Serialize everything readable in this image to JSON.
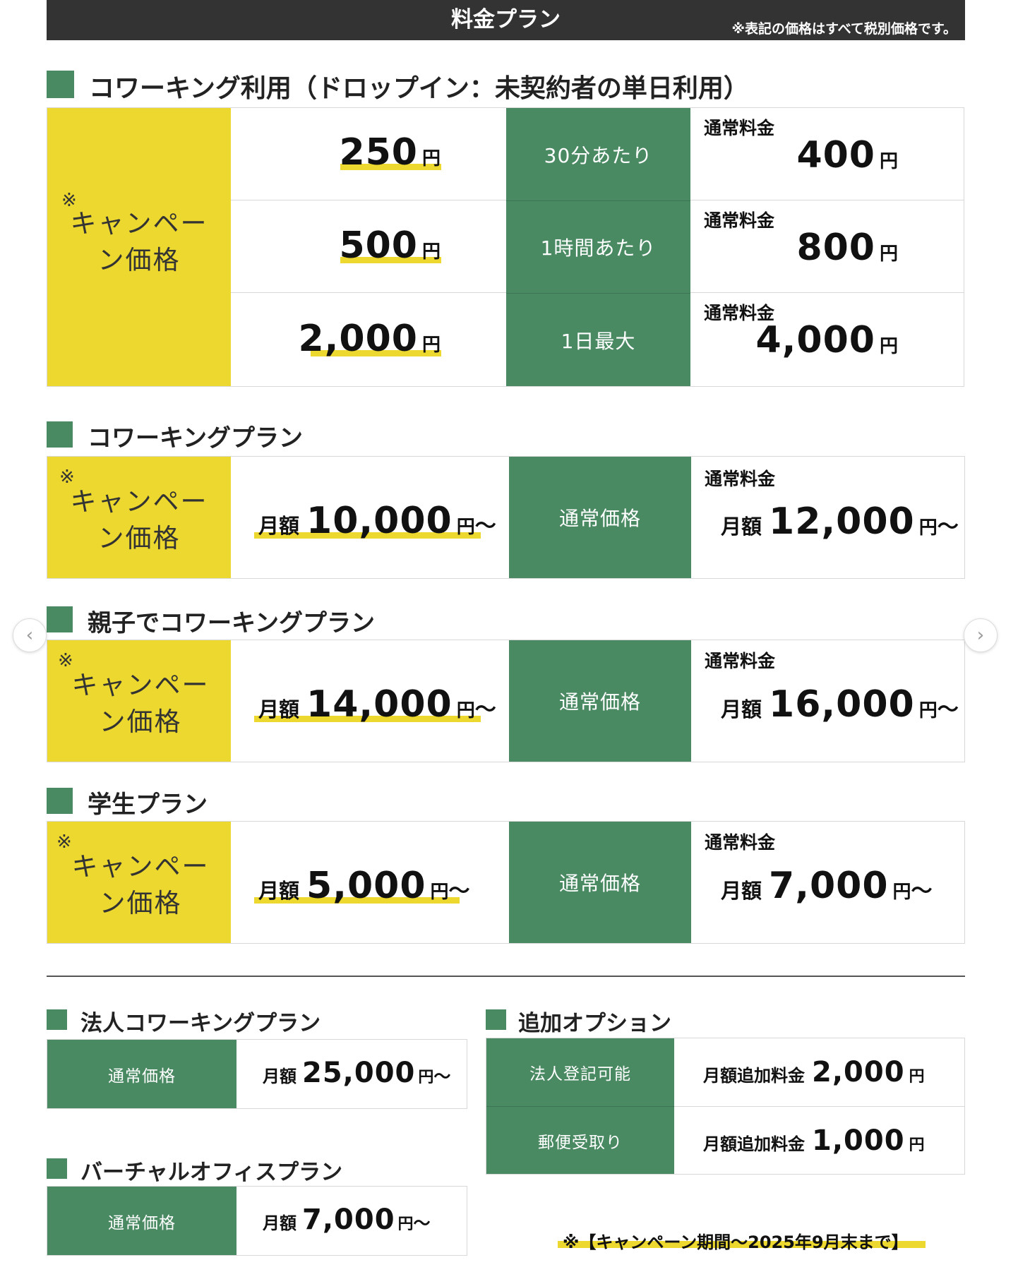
{
  "header": {
    "title": "料金プラン",
    "note": "※表記の価格はすべて税別価格です。"
  },
  "dropin": {
    "heading": "コワーキング利用（ドロップイン：未契約者の単日利用）",
    "campaign_mark": "※",
    "campaign_label": "キャンペーン価格",
    "rows": [
      {
        "campaign_price": "250",
        "unit": "円",
        "label": "30分あたり",
        "regular_label": "通常料金",
        "regular_price": "400",
        "regular_unit": "円"
      },
      {
        "campaign_price": "500",
        "unit": "円",
        "label": "1時間あたり",
        "regular_label": "通常料金",
        "regular_price": "800",
        "regular_unit": "円"
      },
      {
        "campaign_price": "2,000",
        "unit": "円",
        "label": "1日最大",
        "regular_label": "通常料金",
        "regular_price": "4,000",
        "regular_unit": "円"
      }
    ]
  },
  "plans": [
    {
      "heading": "コワーキングプラン",
      "campaign_mark": "※",
      "campaign_label": "キャンペーン価格",
      "prefix": "月額",
      "campaign_price": "10,000",
      "unit": "円",
      "tilde": "〜",
      "label": "通常価格",
      "regular_label": "通常料金",
      "regular_prefix": "月額",
      "regular_price": "12,000",
      "regular_unit": "円",
      "regular_tilde": "〜"
    },
    {
      "heading": "親子でコワーキングプラン",
      "campaign_mark": "※",
      "campaign_label": "キャンペーン価格",
      "prefix": "月額",
      "campaign_price": "14,000",
      "unit": "円",
      "tilde": "〜",
      "label": "通常価格",
      "regular_label": "通常料金",
      "regular_prefix": "月額",
      "regular_price": "16,000",
      "regular_unit": "円",
      "regular_tilde": "〜"
    },
    {
      "heading": "学生プラン",
      "campaign_mark": "※",
      "campaign_label": "キャンペーン価格",
      "prefix": "月額",
      "campaign_price": "5,000",
      "unit": "円",
      "tilde": "〜",
      "label": "通常価格",
      "regular_label": "通常料金",
      "regular_prefix": "月額",
      "regular_price": "7,000",
      "regular_unit": "円",
      "regular_tilde": "〜"
    }
  ],
  "corporate": {
    "heading": "法人コワーキングプラン",
    "label": "通常価格",
    "prefix": "月額",
    "price": "25,000",
    "unit": "円",
    "tilde": "〜"
  },
  "virtual": {
    "heading": "バーチャルオフィスプラン",
    "label": "通常価格",
    "prefix": "月額",
    "price": "7,000",
    "unit": "円",
    "tilde": "〜"
  },
  "options": {
    "heading": "追加オプション",
    "rows": [
      {
        "label": "法人登記可能",
        "prefix": "月額追加料金",
        "price": "2,000",
        "unit": "円"
      },
      {
        "label": "郵便受取り",
        "prefix": "月額追加料金",
        "price": "1,000",
        "unit": "円"
      }
    ]
  },
  "footer_note": "※【キャンペーン期間〜2025年9月末まで】",
  "carousel": {
    "prev_icon": "chevron-left-icon",
    "next_icon": "chevron-right-icon"
  },
  "colors": {
    "green": "#4a8a63",
    "yellow": "#ecd82e",
    "header_bg": "#333333"
  }
}
